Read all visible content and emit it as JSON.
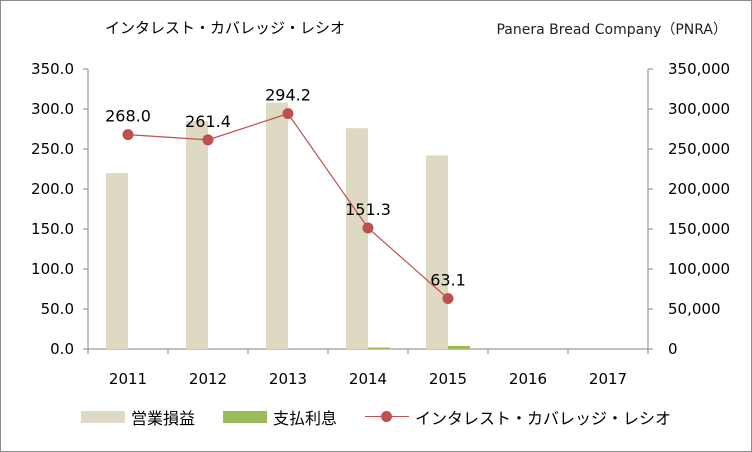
{
  "header": {
    "title": "インタレスト・カバレッジ・レシオ",
    "company": "Panera Bread Company（PNRA）"
  },
  "chart_data": {
    "type": "bar",
    "categories": [
      "2011",
      "2012",
      "2013",
      "2014",
      "2015",
      "2016",
      "2017"
    ],
    "series": [
      {
        "name": "営業損益",
        "type": "bar",
        "axis": "right",
        "color": "#ddd9c3",
        "values": [
          220000,
          285000,
          308000,
          276000,
          242000,
          null,
          null
        ]
      },
      {
        "name": "支払利息",
        "type": "bar",
        "axis": "right",
        "color": "#9bbb59",
        "values": [
          0,
          0,
          0,
          1800,
          3800,
          null,
          null
        ]
      },
      {
        "name": "インタレスト・カバレッジ・レシオ",
        "type": "line",
        "axis": "left",
        "color": "#c0504d",
        "values": [
          268.0,
          261.4,
          294.2,
          151.3,
          63.1,
          null,
          null
        ],
        "labels": [
          "268.0",
          "261.4",
          "294.2",
          "151.3",
          "63.1",
          null,
          null
        ]
      }
    ],
    "y_left": {
      "min": 0,
      "max": 350,
      "ticks": [
        "0.0",
        "50.0",
        "100.0",
        "150.0",
        "200.0",
        "250.0",
        "300.0",
        "350.0"
      ]
    },
    "y_right": {
      "min": 0,
      "max": 350000,
      "ticks": [
        "0",
        "50,000",
        "100,000",
        "150,000",
        "200,000",
        "250,000",
        "300,000",
        "350,000"
      ]
    },
    "grid": false,
    "legend_position": "bottom"
  }
}
